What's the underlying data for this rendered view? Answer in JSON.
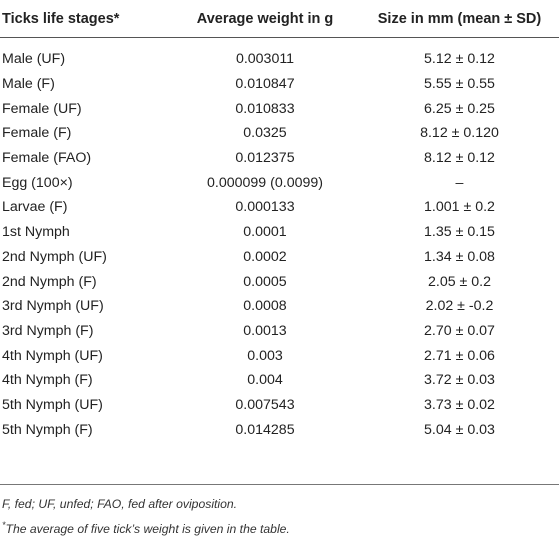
{
  "table": {
    "headers": [
      "Ticks life stages*",
      "Average weight in g",
      "Size in mm (mean ± SD)"
    ],
    "rows": [
      [
        "Male (UF)",
        "0.003011",
        "5.12 ± 0.12"
      ],
      [
        "Male (F)",
        "0.010847",
        "5.55 ± 0.55"
      ],
      [
        "Female (UF)",
        "0.010833",
        "6.25 ± 0.25"
      ],
      [
        "Female (F)",
        "0.0325",
        "8.12 ± 0.120"
      ],
      [
        "Female (FAO)",
        "0.012375",
        "8.12 ± 0.12"
      ],
      [
        "Egg (100×)",
        "0.000099 (0.0099)",
        "–"
      ],
      [
        "Larvae (F)",
        "0.000133",
        "1.001 ± 0.2"
      ],
      [
        "1st Nymph",
        "0.0001",
        "1.35 ± 0.15"
      ],
      [
        "2nd Nymph (UF)",
        "0.0002",
        "1.34 ± 0.08"
      ],
      [
        "2nd Nymph (F)",
        "0.0005",
        "2.05 ± 0.2"
      ],
      [
        "3rd Nymph (UF)",
        "0.0008",
        "2.02 ± -0.2"
      ],
      [
        "3rd Nymph (F)",
        "0.0013",
        "2.70 ± 0.07"
      ],
      [
        "4th Nymph (UF)",
        "0.003",
        "2.71 ± 0.06"
      ],
      [
        "4th Nymph (F)",
        "0.004",
        "3.72 ± 0.03"
      ],
      [
        "5th Nymph (UF)",
        "0.007543",
        "3.73 ± 0.02"
      ],
      [
        "5th Nymph (F)",
        "0.014285",
        "5.04 ± 0.03"
      ]
    ]
  },
  "footnotes": {
    "abbrev": "F, fed; UF, unfed; FAO, fed after oviposition.",
    "star_mark": "*",
    "star_note": "The average of five tick’s weight is given in the table."
  }
}
